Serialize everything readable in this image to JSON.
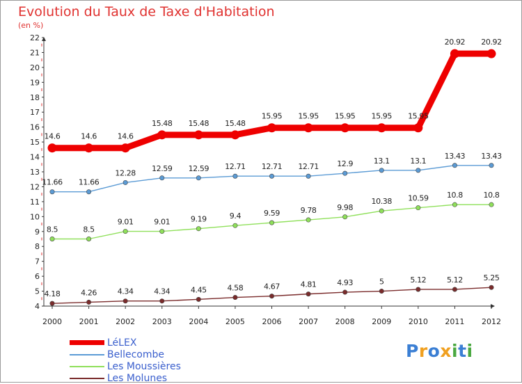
{
  "title": "Evolution du Taux de Taxe d'Habitation",
  "subtitle": "(en %)",
  "chart_data": {
    "type": "line",
    "x": [
      "2000",
      "2001",
      "2002",
      "2003",
      "2004",
      "2005",
      "2006",
      "2007",
      "2008",
      "2009",
      "2010",
      "2011",
      "2012"
    ],
    "ylim": [
      4,
      22
    ],
    "yticks": [
      "4",
      "5",
      "6",
      "7",
      "8",
      "9",
      "10",
      "11",
      "12",
      "13",
      "14",
      "15",
      "16",
      "17",
      "18",
      "19",
      "20",
      "21",
      "22"
    ],
    "grid": false,
    "series": [
      {
        "name": "LéLEX",
        "color": "#ee0000",
        "thick": true,
        "values": [
          14.6,
          14.6,
          14.6,
          15.48,
          15.48,
          15.48,
          15.95,
          15.95,
          15.95,
          15.95,
          15.95,
          20.92,
          20.92
        ],
        "labels": [
          "14.6",
          "14.6",
          "14.6",
          "15.48",
          "15.48",
          "15.48",
          "15.95",
          "15.95",
          "15.95",
          "15.95",
          "15.95",
          "20.92",
          "20.92"
        ]
      },
      {
        "name": "Bellecombe",
        "color": "#5b9bd5",
        "thick": false,
        "values": [
          11.66,
          11.66,
          12.28,
          12.59,
          12.59,
          12.71,
          12.71,
          12.71,
          12.9,
          13.1,
          13.1,
          13.43,
          13.43
        ],
        "labels": [
          "11.66",
          "11.66",
          "12.28",
          "12.59",
          "12.59",
          "12.71",
          "12.71",
          "12.71",
          "12.9",
          "13.1",
          "13.1",
          "13.43",
          "13.43"
        ]
      },
      {
        "name": "Les Moussières",
        "color": "#8fe05a",
        "thick": false,
        "values": [
          8.5,
          8.5,
          9.01,
          9.01,
          9.19,
          9.4,
          9.59,
          9.78,
          9.98,
          10.38,
          10.59,
          10.8,
          10.8
        ],
        "labels": [
          "8.5",
          "8.5",
          "9.01",
          "9.01",
          "9.19",
          "9.4",
          "9.59",
          "9.78",
          "9.98",
          "10.38",
          "10.59",
          "10.8",
          "10.8"
        ]
      },
      {
        "name": "Les Molunes",
        "color": "#7a2b2b",
        "thick": false,
        "values": [
          4.18,
          4.26,
          4.34,
          4.34,
          4.45,
          4.58,
          4.67,
          4.81,
          4.93,
          5,
          5.12,
          5.12,
          5.25
        ],
        "labels": [
          "4.18",
          "4.26",
          "4.34",
          "4.34",
          "4.45",
          "4.58",
          "4.67",
          "4.81",
          "4.93",
          "5",
          "5.12",
          "5.12",
          "5.25"
        ]
      }
    ]
  },
  "logo": {
    "letters": [
      "P",
      "r",
      "o",
      "x",
      "i",
      "t",
      "i"
    ],
    "colors": [
      "#3b7fd4",
      "#f0a020",
      "#3b7fd4",
      "#f0a020",
      "#4aa840",
      "#3b7fd4",
      "#4aa840"
    ]
  }
}
